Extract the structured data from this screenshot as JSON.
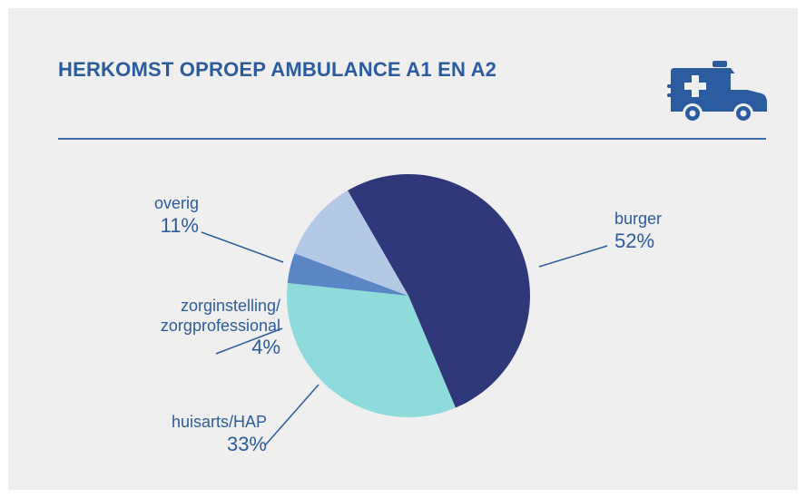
{
  "title": "HERKOMST OPROEP AMBULANCE A1 EN A2",
  "icon": "ambulance-icon",
  "colors": {
    "title": "#2b5c9f",
    "background": "#efefef",
    "divider": "#3d6aa8",
    "label": "#2b5c9f"
  },
  "chart_data": {
    "type": "pie",
    "title": "HERKOMST OPROEP AMBULANCE A1 EN A2",
    "slices": [
      {
        "name": "burger",
        "label": "burger",
        "percent_label": "52%",
        "value": 52,
        "color": "#2f3878"
      },
      {
        "name": "huisarts/HAP",
        "label": "huisarts/HAP",
        "percent_label": "33%",
        "value": 33,
        "color": "#8fdbdb"
      },
      {
        "name": "zorginstelling/ zorgprofessional",
        "label_line1": "zorginstelling/",
        "label_line2": "zorgprofessional",
        "percent_label": "4%",
        "value": 4,
        "color": "#5b86c5"
      },
      {
        "name": "overig",
        "label": "overig",
        "percent_label": "11%",
        "value": 11,
        "color": "#b3c9e6"
      }
    ]
  }
}
